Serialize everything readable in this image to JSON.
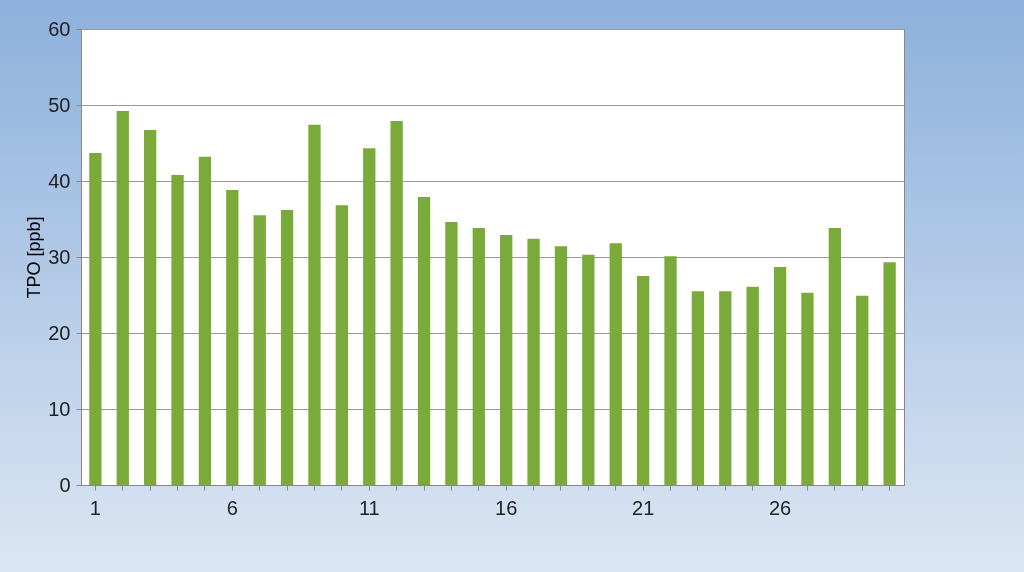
{
  "chart_data": {
    "type": "bar",
    "ylabel": "TPO [ppb]",
    "categories": [
      "1",
      null,
      null,
      null,
      null,
      "6",
      null,
      null,
      null,
      null,
      "11",
      null,
      null,
      null,
      null,
      "16",
      null,
      null,
      null,
      null,
      "21",
      null,
      null,
      null,
      null,
      "26",
      null,
      null,
      null,
      null
    ],
    "values": [
      43.7,
      49.2,
      46.7,
      40.8,
      43.2,
      38.8,
      35.5,
      36.2,
      47.4,
      36.8,
      44.3,
      47.9,
      37.9,
      34.6,
      33.8,
      32.9,
      32.4,
      31.4,
      30.3,
      31.8,
      27.5,
      30.1,
      25.5,
      25.5,
      26.1,
      28.7,
      25.3,
      33.8,
      24.9,
      29.3
    ],
    "color": "#7aab3a",
    "ylim": [
      0,
      60
    ],
    "yticks": [
      0,
      10,
      20,
      30,
      40,
      50,
      60
    ],
    "grid": "y"
  }
}
